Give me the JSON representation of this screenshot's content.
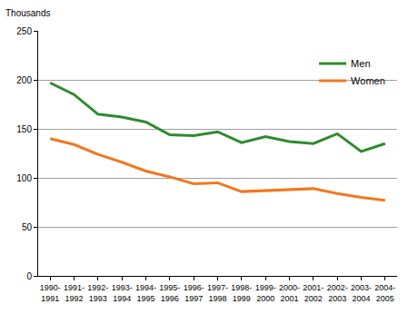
{
  "chart_data": {
    "type": "line",
    "y_label": "Thousands",
    "categories": [
      "1990-1991",
      "1991-1992",
      "1992-1993",
      "1993-1994",
      "1994-1995",
      "1995-1996",
      "1996-1997",
      "1997-1998",
      "1998-1999",
      "1999-2000",
      "2000-2001",
      "2001-2002",
      "2002-2003",
      "2003-2004",
      "2004-2005"
    ],
    "series": [
      {
        "name": "Men",
        "color": "#2e8b2e",
        "values": [
          197,
          185,
          165,
          162,
          157,
          144,
          143,
          147,
          136,
          142,
          137,
          135,
          145,
          127,
          135
        ]
      },
      {
        "name": "Women",
        "color": "#f07820",
        "values": [
          140,
          134,
          124,
          116,
          107,
          101,
          94,
          95,
          86,
          87,
          88,
          89,
          84,
          80,
          77
        ]
      }
    ],
    "ylim": [
      0,
      250
    ],
    "yticks": [
      0,
      50,
      100,
      150,
      200,
      250
    ],
    "grid": true,
    "legend": "top right"
  }
}
